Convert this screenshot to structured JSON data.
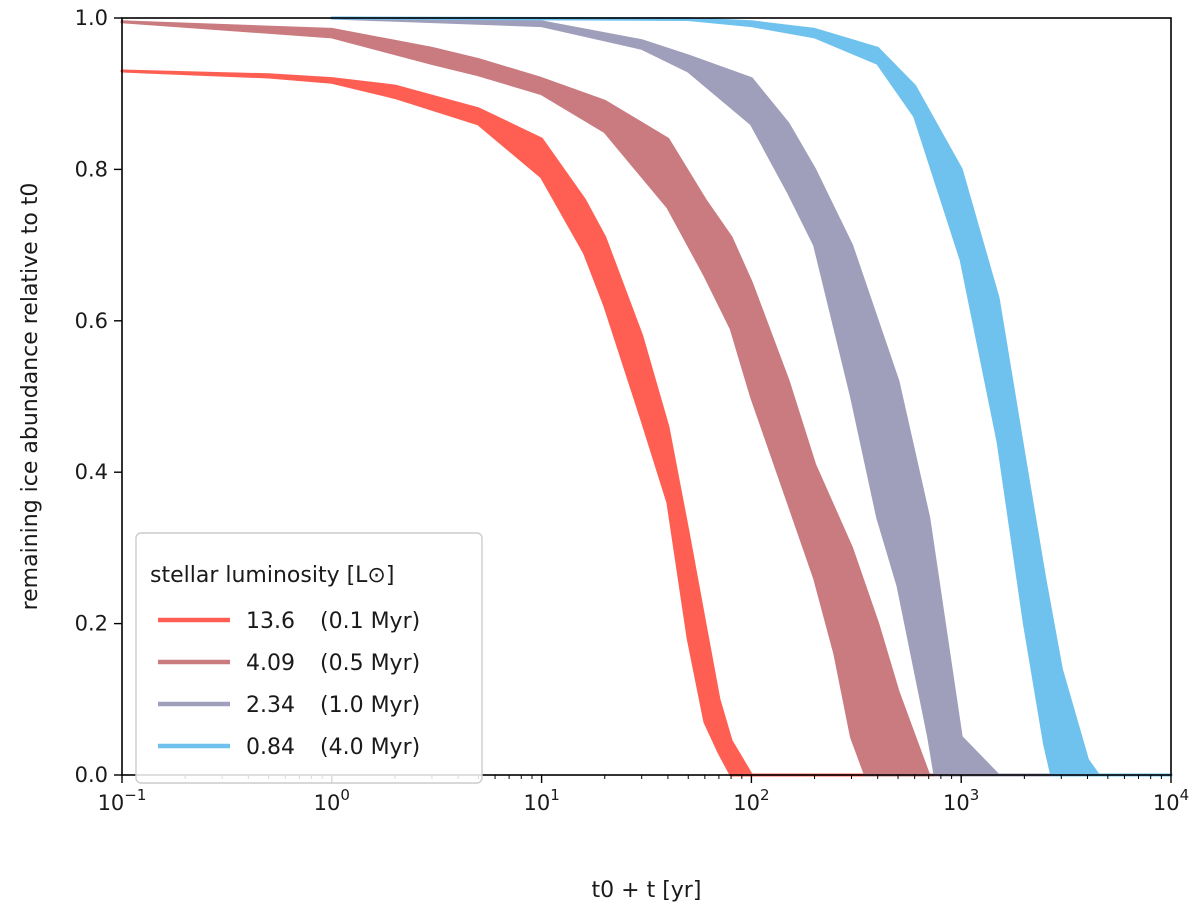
{
  "chart_data": {
    "type": "area",
    "xlabel": "t0 + t [yr]",
    "ylabel": "remaining ice abundance relative to t0",
    "xscale": "log",
    "xlim": [
      0.1,
      10000
    ],
    "ylim": [
      0.0,
      1.0
    ],
    "x_ticks": [
      {
        "value": 0.1,
        "base": "10",
        "exp": "−1"
      },
      {
        "value": 1,
        "base": "10",
        "exp": "0"
      },
      {
        "value": 10,
        "base": "10",
        "exp": "1"
      },
      {
        "value": 100,
        "base": "10",
        "exp": "2"
      },
      {
        "value": 1000,
        "base": "10",
        "exp": "3"
      },
      {
        "value": 10000,
        "base": "10",
        "exp": "4"
      }
    ],
    "y_ticks": [
      "0.0",
      "0.2",
      "0.4",
      "0.6",
      "0.8",
      "1.0"
    ],
    "grid": false,
    "legend": {
      "title": "stellar luminosity [L⊙]",
      "placement": "lower-left",
      "entries": [
        {
          "value": "13.6",
          "age": "(0.1 Myr)"
        },
        {
          "value": "4.09",
          "age": "(0.5 Myr)"
        },
        {
          "value": "2.34",
          "age": "(1.0 Myr)"
        },
        {
          "value": "0.84",
          "age": "(4.0 Myr)"
        }
      ]
    },
    "series": [
      {
        "name": "13.6 (0.1 Myr)",
        "color": "#ff5f52",
        "upper": [
          [
            0.1,
            0.93
          ],
          [
            0.5,
            0.925
          ],
          [
            1,
            0.92
          ],
          [
            2,
            0.91
          ],
          [
            5,
            0.88
          ],
          [
            10,
            0.84
          ],
          [
            16,
            0.76
          ],
          [
            20,
            0.71
          ],
          [
            30,
            0.58
          ],
          [
            40,
            0.46
          ],
          [
            50,
            0.32
          ],
          [
            60,
            0.2
          ],
          [
            70,
            0.1
          ],
          [
            80,
            0.045
          ],
          [
            100,
            0.0
          ]
        ],
        "lower": [
          [
            0.1,
            0.93
          ],
          [
            0.5,
            0.922
          ],
          [
            1,
            0.915
          ],
          [
            2,
            0.895
          ],
          [
            5,
            0.86
          ],
          [
            10,
            0.79
          ],
          [
            16,
            0.69
          ],
          [
            20,
            0.62
          ],
          [
            30,
            0.47
          ],
          [
            40,
            0.36
          ],
          [
            50,
            0.18
          ],
          [
            60,
            0.07
          ],
          [
            70,
            0.03
          ],
          [
            80,
            0.0
          ]
        ]
      },
      {
        "name": "4.09 (0.5 Myr)",
        "color": "#c97b80",
        "upper": [
          [
            0.1,
            0.995
          ],
          [
            1,
            0.985
          ],
          [
            3,
            0.96
          ],
          [
            5,
            0.945
          ],
          [
            10,
            0.92
          ],
          [
            20,
            0.89
          ],
          [
            40,
            0.84
          ],
          [
            60,
            0.76
          ],
          [
            80,
            0.71
          ],
          [
            100,
            0.65
          ],
          [
            150,
            0.52
          ],
          [
            200,
            0.41
          ],
          [
            300,
            0.3
          ],
          [
            400,
            0.2
          ],
          [
            500,
            0.11
          ],
          [
            600,
            0.05
          ],
          [
            700,
            0.0
          ]
        ],
        "lower": [
          [
            0.1,
            0.995
          ],
          [
            1,
            0.975
          ],
          [
            3,
            0.94
          ],
          [
            5,
            0.925
          ],
          [
            10,
            0.9
          ],
          [
            20,
            0.85
          ],
          [
            40,
            0.75
          ],
          [
            60,
            0.66
          ],
          [
            80,
            0.59
          ],
          [
            100,
            0.5
          ],
          [
            150,
            0.36
          ],
          [
            200,
            0.26
          ],
          [
            250,
            0.16
          ],
          [
            300,
            0.05
          ],
          [
            350,
            0.0
          ]
        ]
      },
      {
        "name": "2.34 (1.0 Myr)",
        "color": "#9f9fbc",
        "upper": [
          [
            1,
            1.0
          ],
          [
            10,
            0.995
          ],
          [
            30,
            0.97
          ],
          [
            50,
            0.95
          ],
          [
            100,
            0.92
          ],
          [
            150,
            0.86
          ],
          [
            200,
            0.8
          ],
          [
            300,
            0.7
          ],
          [
            500,
            0.52
          ],
          [
            700,
            0.34
          ],
          [
            1000,
            0.05
          ],
          [
            1500,
            0.0
          ]
        ],
        "lower": [
          [
            1,
            1.0
          ],
          [
            10,
            0.99
          ],
          [
            30,
            0.96
          ],
          [
            50,
            0.93
          ],
          [
            100,
            0.86
          ],
          [
            150,
            0.77
          ],
          [
            200,
            0.7
          ],
          [
            300,
            0.5
          ],
          [
            400,
            0.34
          ],
          [
            500,
            0.25
          ],
          [
            700,
            0.05
          ],
          [
            750,
            0.0
          ]
        ]
      },
      {
        "name": "0.84 (4.0 Myr)",
        "color": "#6fc1ee",
        "upper": [
          [
            1,
            1.0
          ],
          [
            50,
            0.999
          ],
          [
            100,
            0.995
          ],
          [
            200,
            0.985
          ],
          [
            400,
            0.96
          ],
          [
            600,
            0.91
          ],
          [
            1000,
            0.8
          ],
          [
            1500,
            0.63
          ],
          [
            2000,
            0.42
          ],
          [
            2500,
            0.26
          ],
          [
            3000,
            0.14
          ],
          [
            4000,
            0.02
          ],
          [
            4500,
            0.0
          ]
        ],
        "lower": [
          [
            1,
            1.0
          ],
          [
            50,
            0.998
          ],
          [
            100,
            0.99
          ],
          [
            200,
            0.975
          ],
          [
            400,
            0.94
          ],
          [
            600,
            0.87
          ],
          [
            1000,
            0.68
          ],
          [
            1500,
            0.44
          ],
          [
            2000,
            0.2
          ],
          [
            2500,
            0.04
          ],
          [
            2700,
            0.0
          ]
        ]
      }
    ]
  }
}
